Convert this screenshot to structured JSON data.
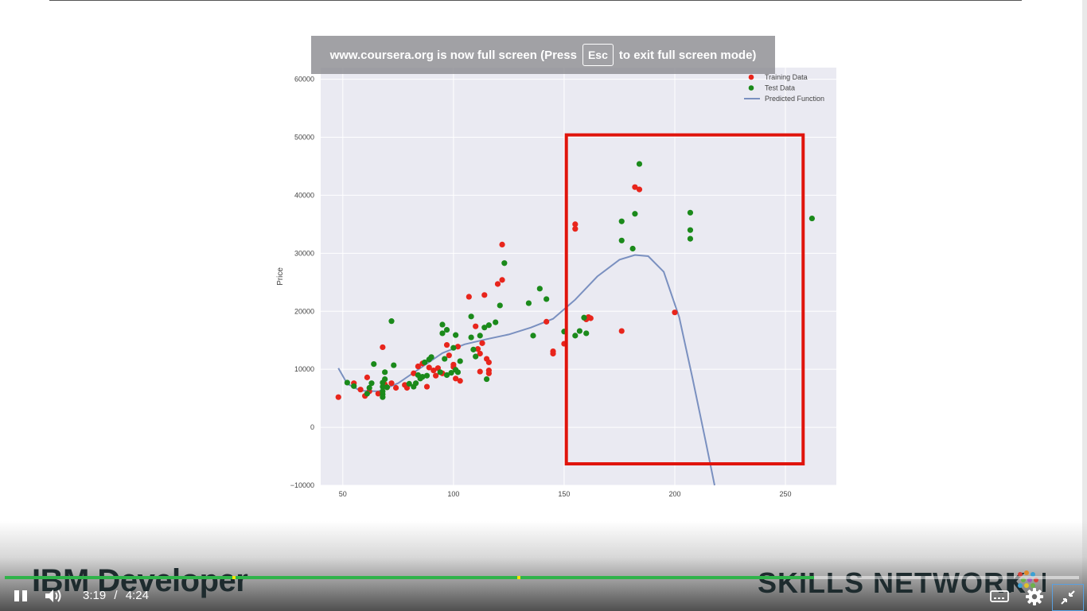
{
  "banner": {
    "text_before": "www.coursera.org is now full screen (Press",
    "key": "Esc",
    "text_after": "to exit full screen mode)"
  },
  "chart_data": {
    "type": "scatter",
    "title": "",
    "xlabel": "",
    "ylabel": "Price",
    "xlim": [
      40,
      273
    ],
    "ylim": [
      -10000,
      62000
    ],
    "xticks": [
      50,
      100,
      150,
      200,
      250
    ],
    "yticks": [
      -10000,
      0,
      10000,
      20000,
      30000,
      40000,
      50000,
      60000
    ],
    "ytick_labels": [
      "−10000",
      "0",
      "10000",
      "20000",
      "30000",
      "40000",
      "50000",
      "60000"
    ],
    "grid": true,
    "legend_position": "top-right",
    "colors": {
      "training": "#e8251c",
      "test": "#1b8a1b",
      "line": "#7a90c0",
      "box": "#e0140c"
    },
    "series": [
      {
        "name": "Training Data",
        "kind": "points",
        "points": [
          [
            48,
            5200
          ],
          [
            55,
            7600
          ],
          [
            58,
            6500
          ],
          [
            60,
            5400
          ],
          [
            61,
            8600
          ],
          [
            62,
            6200
          ],
          [
            66,
            5800
          ],
          [
            68,
            13800
          ],
          [
            69,
            7400
          ],
          [
            70,
            6900
          ],
          [
            72,
            7600
          ],
          [
            74,
            6800
          ],
          [
            78,
            7300
          ],
          [
            79,
            6800
          ],
          [
            82,
            9300
          ],
          [
            84,
            10500
          ],
          [
            86,
            11000
          ],
          [
            88,
            7000
          ],
          [
            89,
            10300
          ],
          [
            91,
            9800
          ],
          [
            92,
            8900
          ],
          [
            93,
            10200
          ],
          [
            95,
            9300
          ],
          [
            97,
            14200
          ],
          [
            98,
            12400
          ],
          [
            100,
            10800
          ],
          [
            100,
            10400
          ],
          [
            101,
            8400
          ],
          [
            102,
            13900
          ],
          [
            103,
            8000
          ],
          [
            107,
            22500
          ],
          [
            110,
            17400
          ],
          [
            111,
            13500
          ],
          [
            112,
            12700
          ],
          [
            112,
            9600
          ],
          [
            113,
            14500
          ],
          [
            114,
            22800
          ],
          [
            115,
            11800
          ],
          [
            116,
            9800
          ],
          [
            116,
            9300
          ],
          [
            116,
            11200
          ],
          [
            120,
            24700
          ],
          [
            122,
            25400
          ],
          [
            122,
            31500
          ],
          [
            142,
            18200
          ],
          [
            145,
            13100
          ],
          [
            145,
            12700
          ],
          [
            150,
            14400
          ],
          [
            155,
            35000
          ],
          [
            155,
            34200
          ],
          [
            160,
            18600
          ],
          [
            161,
            19000
          ],
          [
            162,
            18800
          ],
          [
            176,
            16600
          ],
          [
            182,
            41400
          ],
          [
            184,
            41000
          ],
          [
            200,
            19800
          ]
        ]
      },
      {
        "name": "Test Data",
        "kind": "points",
        "points": [
          [
            52,
            7700
          ],
          [
            55,
            7100
          ],
          [
            61,
            5800
          ],
          [
            62,
            6800
          ],
          [
            63,
            7600
          ],
          [
            64,
            10900
          ],
          [
            68,
            5200
          ],
          [
            68,
            5700
          ],
          [
            68,
            6200
          ],
          [
            68,
            7000
          ],
          [
            68,
            7700
          ],
          [
            69,
            8300
          ],
          [
            69,
            9500
          ],
          [
            70,
            6900
          ],
          [
            72,
            18300
          ],
          [
            73,
            10700
          ],
          [
            80,
            7500
          ],
          [
            82,
            7000
          ],
          [
            83,
            7600
          ],
          [
            84,
            9000
          ],
          [
            85,
            8400
          ],
          [
            86,
            8700
          ],
          [
            87,
            11200
          ],
          [
            88,
            8900
          ],
          [
            89,
            11700
          ],
          [
            90,
            12100
          ],
          [
            94,
            9500
          ],
          [
            95,
            16200
          ],
          [
            95,
            17700
          ],
          [
            96,
            11800
          ],
          [
            97,
            16800
          ],
          [
            97,
            9000
          ],
          [
            99,
            9400
          ],
          [
            100,
            13700
          ],
          [
            101,
            9900
          ],
          [
            101,
            15900
          ],
          [
            102,
            9500
          ],
          [
            103,
            11400
          ],
          [
            108,
            15500
          ],
          [
            108,
            19100
          ],
          [
            109,
            13400
          ],
          [
            110,
            12200
          ],
          [
            112,
            15800
          ],
          [
            114,
            17200
          ],
          [
            115,
            8300
          ],
          [
            116,
            17600
          ],
          [
            119,
            18100
          ],
          [
            121,
            21000
          ],
          [
            123,
            28300
          ],
          [
            134,
            21400
          ],
          [
            136,
            15800
          ],
          [
            139,
            23900
          ],
          [
            142,
            22100
          ],
          [
            150,
            16500
          ],
          [
            155,
            15800
          ],
          [
            157,
            16600
          ],
          [
            159,
            18900
          ],
          [
            160,
            16200
          ],
          [
            176,
            35500
          ],
          [
            176,
            32200
          ],
          [
            181,
            30800
          ],
          [
            182,
            36800
          ],
          [
            184,
            45400
          ],
          [
            207,
            37000
          ],
          [
            207,
            34000
          ],
          [
            207,
            32500
          ],
          [
            262,
            36000
          ]
        ]
      },
      {
        "name": "Predicted Function",
        "kind": "line",
        "points": [
          [
            48,
            10200
          ],
          [
            52,
            7500
          ],
          [
            58,
            6300
          ],
          [
            66,
            6200
          ],
          [
            75,
            7600
          ],
          [
            85,
            10200
          ],
          [
            95,
            12800
          ],
          [
            105,
            14300
          ],
          [
            115,
            15200
          ],
          [
            125,
            16000
          ],
          [
            135,
            17200
          ],
          [
            145,
            18700
          ],
          [
            155,
            22000
          ],
          [
            165,
            26000
          ],
          [
            175,
            28900
          ],
          [
            182,
            29700
          ],
          [
            188,
            29500
          ],
          [
            195,
            26800
          ],
          [
            202,
            19000
          ],
          [
            208,
            8500
          ],
          [
            214,
            -2500
          ],
          [
            218,
            -10000
          ]
        ]
      }
    ],
    "box": {
      "x0": 151,
      "x1": 258,
      "y0": -6300,
      "y1": 50400
    }
  },
  "brand": {
    "left": "IBM Developer",
    "right": "SKILLS NETWORK"
  },
  "player": {
    "current_time": "3:19",
    "separator": "/",
    "duration": "4:24",
    "progress": 0.7534,
    "marker_times": [
      "0:56",
      "2:06"
    ],
    "icons": {
      "play_pause": "pause-icon",
      "volume": "volume-icon",
      "captions": "captions-icon",
      "settings": "gear-icon",
      "fullscreen": "exit-fullscreen-icon"
    }
  }
}
